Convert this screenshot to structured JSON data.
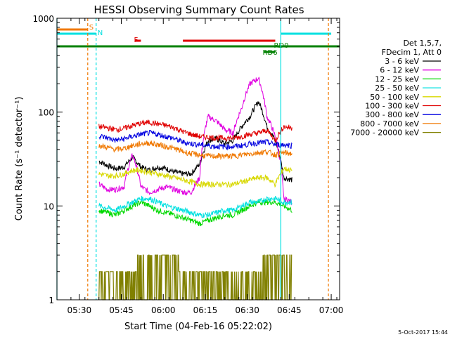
{
  "chart_data": {
    "type": "line",
    "title": "HESSI Observing Summary Count Rates",
    "xlabel": "Start Time (04-Feb-16 05:22:02)",
    "ylabel": "Count Rate (s⁻¹ detector⁻¹)",
    "yscale": "log",
    "ylim": [
      1,
      1000
    ],
    "xlim": [
      "05:22",
      "07:03"
    ],
    "x_ticks": [
      "05:30",
      "05:45",
      "06:00",
      "06:15",
      "06:30",
      "06:45",
      "07:00"
    ],
    "y_ticks": [
      "1",
      "10",
      "100",
      "1000"
    ],
    "grid": false,
    "legend_position": "right",
    "legend_header": [
      "Det 1,5,7,",
      "FDecim 1, Att 0"
    ],
    "x": [
      "05:37",
      "05:40",
      "05:43",
      "05:46",
      "05:49",
      "05:52",
      "05:55",
      "05:58",
      "06:01",
      "06:04",
      "06:07",
      "06:10",
      "06:13",
      "06:16",
      "06:19",
      "06:22",
      "06:25",
      "06:28",
      "06:31",
      "06:34",
      "06:37",
      "06:40",
      "06:43",
      "06:46"
    ],
    "series": [
      {
        "name": "3 - 6 keV",
        "color": "#000000",
        "values": [
          30,
          27,
          25,
          26,
          33,
          26,
          24,
          26,
          25,
          23,
          22,
          22,
          28,
          50,
          52,
          46,
          50,
          70,
          90,
          130,
          70,
          50,
          20,
          19
        ]
      },
      {
        "name": "6 - 12 keV",
        "color": "#e000e0",
        "values": [
          17,
          15,
          15,
          16,
          35,
          16,
          14,
          15,
          16,
          15,
          14,
          14,
          20,
          90,
          80,
          65,
          60,
          110,
          200,
          230,
          90,
          55,
          12,
          11
        ]
      },
      {
        "name": "12 - 25 keV",
        "color": "#00d800",
        "values": [
          9,
          8.5,
          8,
          9,
          10,
          11,
          10,
          9,
          8.5,
          8,
          7.5,
          7,
          6.5,
          7,
          7.5,
          8,
          8,
          9,
          10,
          11,
          11,
          11,
          10,
          9
        ]
      },
      {
        "name": "25 - 50 keV",
        "color": "#00e0e0",
        "values": [
          10,
          9.5,
          9,
          10,
          11,
          12,
          12,
          11,
          10,
          9.5,
          9,
          8.5,
          8,
          8,
          8.5,
          9,
          9,
          10,
          11,
          11,
          12,
          12,
          11,
          11
        ]
      },
      {
        "name": "50 - 100 keV",
        "color": "#d8d800",
        "values": [
          22,
          21,
          21,
          22,
          24,
          24,
          23,
          22,
          21,
          20,
          19,
          18,
          17,
          17,
          17,
          17,
          17,
          18,
          19,
          20,
          20,
          17,
          25,
          24
        ]
      },
      {
        "name": "100 - 300 keV",
        "color": "#e00000",
        "values": [
          70,
          68,
          65,
          67,
          72,
          76,
          78,
          75,
          72,
          68,
          62,
          58,
          55,
          54,
          53,
          53,
          53,
          55,
          58,
          60,
          64,
          50,
          70,
          68
        ]
      },
      {
        "name": "300 - 800 keV",
        "color": "#0000e0",
        "values": [
          56,
          53,
          50,
          52,
          55,
          58,
          60,
          58,
          55,
          52,
          48,
          46,
          45,
          44,
          43,
          43,
          43,
          44,
          46,
          47,
          48,
          45,
          45,
          44
        ]
      },
      {
        "name": "800 - 7000 keV",
        "color": "#f07800",
        "values": [
          44,
          42,
          40,
          41,
          44,
          46,
          47,
          45,
          43,
          41,
          38,
          36,
          35,
          34,
          34,
          34,
          34,
          35,
          36,
          37,
          38,
          35,
          37,
          36
        ]
      },
      {
        "name": "7000 - 20000 keV",
        "color": "#808000",
        "values": [
          2,
          2,
          2,
          2,
          2,
          3,
          3,
          3,
          3,
          3,
          2,
          2,
          2,
          2,
          2,
          2,
          2,
          2,
          2,
          2,
          3,
          3,
          3,
          3
        ]
      }
    ],
    "annotations": [
      {
        "text": "S",
        "color": "#f07800",
        "x": "05:33"
      },
      {
        "text": "N",
        "color": "#00e0e0",
        "x": "05:36"
      },
      {
        "text": "F",
        "color": "#e00000",
        "x": "05:49"
      },
      {
        "text": "RD0",
        "color": "#008000",
        "x": "06:39"
      },
      {
        "text": "RD6",
        "color": "#008000",
        "x": "06:35"
      }
    ],
    "footer_date": "5-Oct-2017 15:44"
  }
}
